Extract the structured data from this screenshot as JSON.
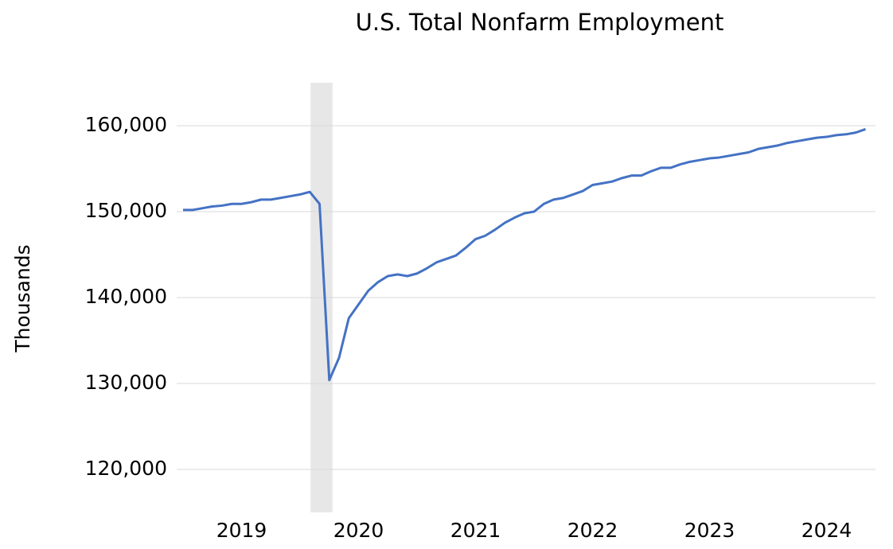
{
  "chart_data": {
    "type": "line",
    "title": "U.S. Total Nonfarm Employment",
    "y_label": "Thousands",
    "categories": [
      null,
      null,
      null,
      null,
      null,
      null,
      "2019",
      null,
      null,
      null,
      null,
      null,
      null,
      null,
      null,
      null,
      null,
      null,
      "2020",
      null,
      null,
      null,
      null,
      null,
      null,
      null,
      null,
      null,
      null,
      null,
      "2021",
      null,
      null,
      null,
      null,
      null,
      null,
      null,
      null,
      null,
      null,
      null,
      "2022",
      null,
      null,
      null,
      null,
      null,
      null,
      null,
      null,
      null,
      null,
      null,
      "2023",
      null,
      null,
      null,
      null,
      null,
      null,
      null,
      null,
      null,
      null,
      null,
      "2024",
      null,
      null,
      null,
      null
    ],
    "series": [
      {
        "name": "Total Nonfarm",
        "color": "#4472c4",
        "values": [
          150200,
          150200,
          150400,
          150600,
          150700,
          150900,
          150900,
          151100,
          151400,
          151400,
          151600,
          151800,
          152000,
          152300,
          150900,
          130400,
          133000,
          137600,
          139200,
          140800,
          141800,
          142500,
          142700,
          142500,
          142800,
          143400,
          144100,
          144500,
          144900,
          145800,
          146800,
          147200,
          147900,
          148700,
          149300,
          149800,
          150000,
          150900,
          151400,
          151600,
          152000,
          152400,
          153100,
          153300,
          153500,
          153900,
          154200,
          154200,
          154700,
          155100,
          155100,
          155500,
          155800,
          156000,
          156200,
          156300,
          156500,
          156700,
          156900,
          157300,
          157500,
          157700,
          158000,
          158200,
          158400,
          158600,
          158700,
          158900,
          159000,
          159200,
          159600
        ]
      }
    ],
    "recession_band": {
      "from": 13,
      "to": 15,
      "color": "#e7e7e7"
    },
    "ylim": [
      115000,
      165000
    ],
    "yticks": [
      {
        "value": 120000,
        "label": "120,000"
      },
      {
        "value": 130000,
        "label": "130,000"
      },
      {
        "value": 140000,
        "label": "140,000"
      },
      {
        "value": 150000,
        "label": "150,000"
      },
      {
        "value": 160000,
        "label": "160,000"
      }
    ],
    "grid": true
  }
}
